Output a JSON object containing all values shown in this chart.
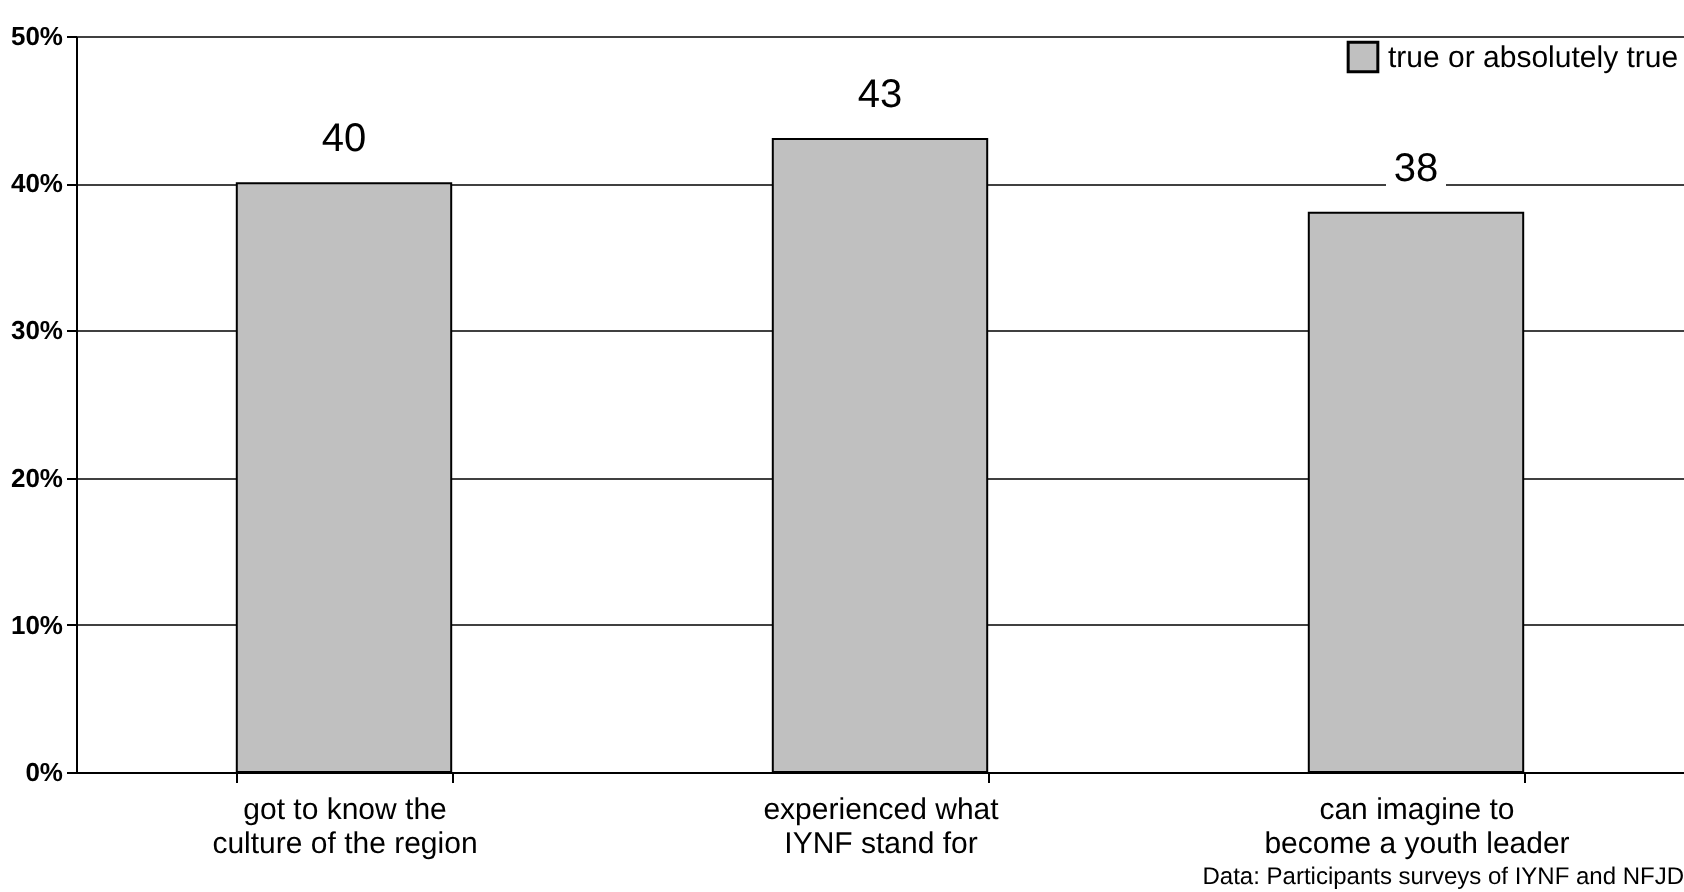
{
  "chart_data": {
    "type": "bar",
    "categories": [
      "got to know the culture of the region",
      "experienced what IYNF stand for",
      "can imagine to become a youth leader"
    ],
    "series": [
      {
        "name": "true or absolutely true",
        "color": "#c0c0c0",
        "values": [
          40,
          43,
          38
        ]
      }
    ],
    "ylim": [
      0,
      50
    ],
    "yticks": [
      {
        "value": 0,
        "label": "0%"
      },
      {
        "value": 10,
        "label": "10%"
      },
      {
        "value": 20,
        "label": "20%"
      },
      {
        "value": 30,
        "label": "30%"
      },
      {
        "value": 40,
        "label": "40%"
      },
      {
        "value": 50,
        "label": "50%"
      }
    ],
    "grid": "y",
    "legend": "top right",
    "data_labels": true,
    "annotations": [
      "Data: Participants surveys of IYNF and NFJD"
    ]
  }
}
